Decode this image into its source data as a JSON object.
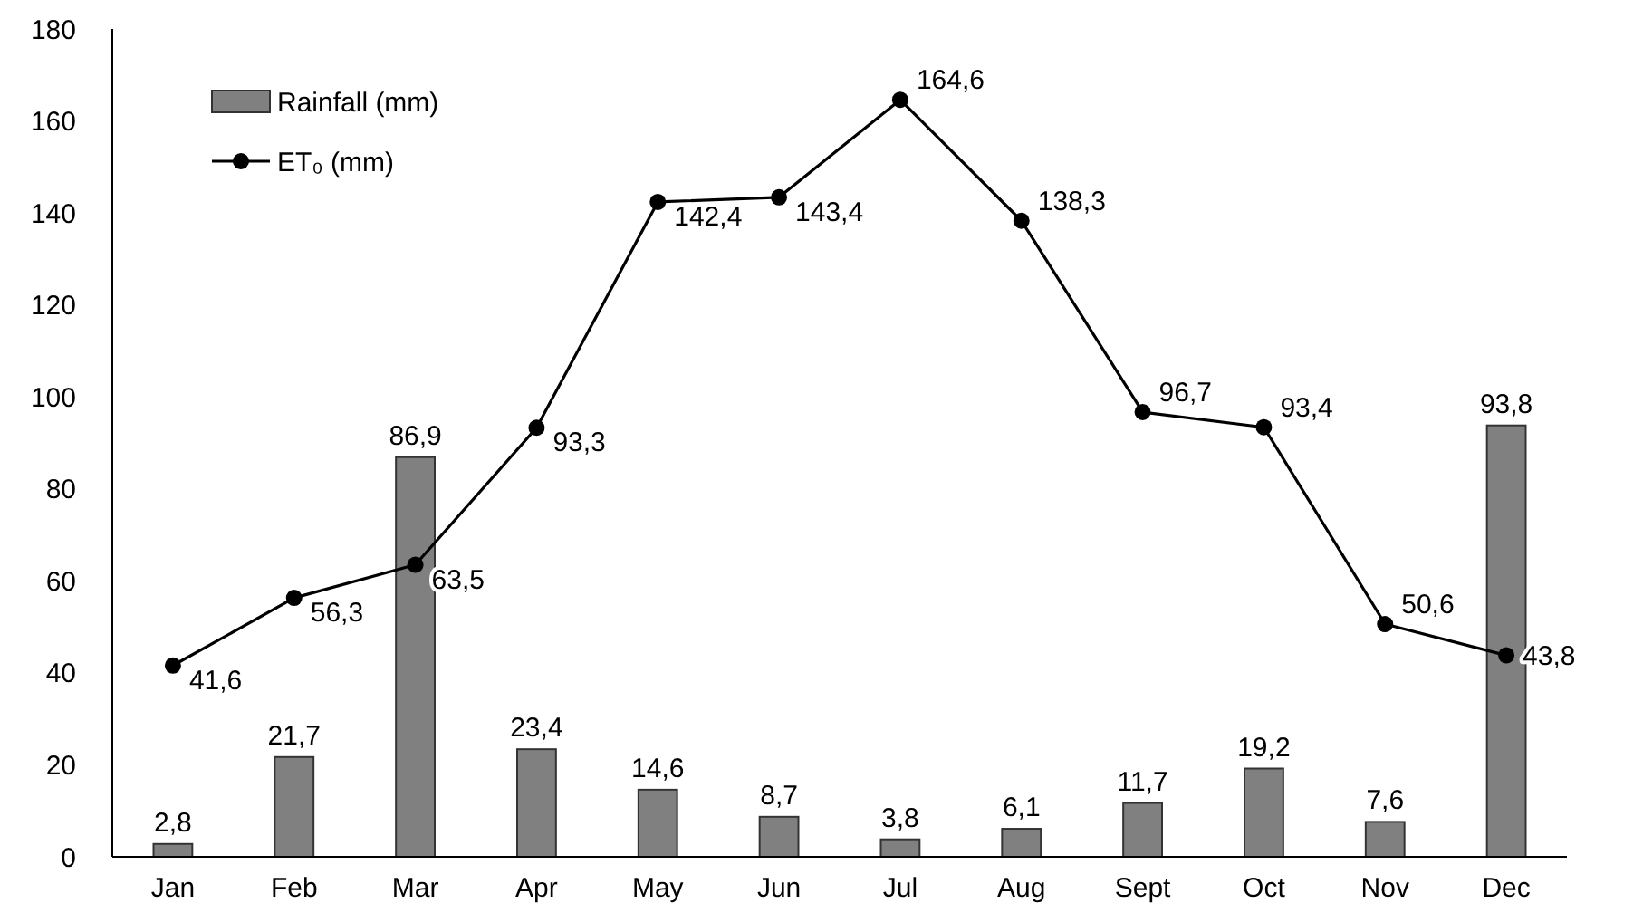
{
  "chart_data": {
    "type": "bar",
    "categories": [
      "Jan",
      "Feb",
      "Mar",
      "Apr",
      "May",
      "Jun",
      "Jul",
      "Aug",
      "Sept",
      "Oct",
      "Nov",
      "Dec"
    ],
    "ylim": [
      0,
      180
    ],
    "yticks": [
      0,
      20,
      40,
      60,
      80,
      100,
      120,
      140,
      160,
      180
    ],
    "grid": false,
    "legend": "top left",
    "series": [
      {
        "name": "Rainfall (mm)",
        "color": "#808080",
        "values": [
          2.8,
          21.7,
          86.9,
          23.4,
          14.6,
          8.7,
          3.8,
          6.1,
          11.7,
          19.2,
          7.6,
          93.8
        ],
        "value_labels": [
          "2,8",
          "21,7",
          "86,9",
          "23,4",
          "14,6",
          "8,7",
          "3,8",
          "6,1",
          "11,7",
          "19,2",
          "7,6",
          "93,8"
        ]
      },
      {
        "name": "ET₀ (mm)",
        "type": "line",
        "color": "#000000",
        "marker": "circle",
        "line_style": "solid",
        "values": [
          41.6,
          56.3,
          63.5,
          93.3,
          142.4,
          143.4,
          164.6,
          138.3,
          96.7,
          93.4,
          50.6,
          43.8
        ],
        "value_labels": [
          "41,6",
          "56,3",
          "63,5",
          "93,3",
          "142,4",
          "143,4",
          "164,6",
          "138,3",
          "96,7",
          "93,4",
          "50,6",
          "43,8"
        ]
      }
    ]
  }
}
